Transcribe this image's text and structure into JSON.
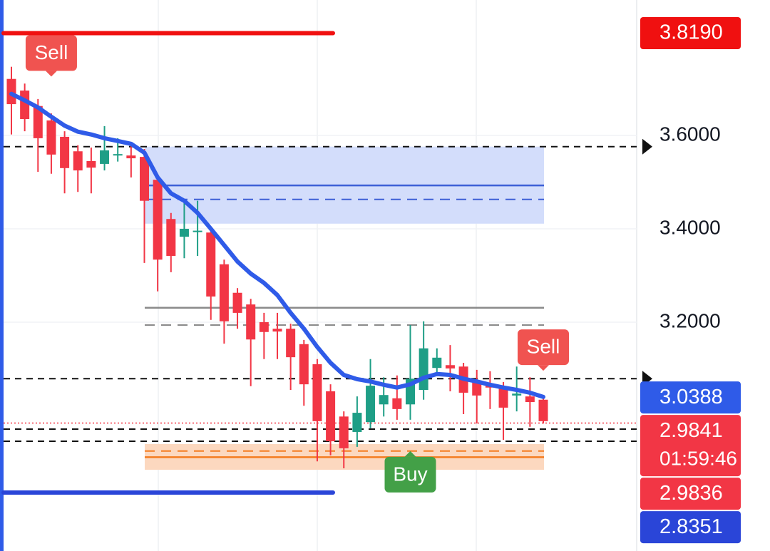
{
  "chart_data": {
    "type": "candlestick",
    "ylim": [
      2.71,
      3.89
    ],
    "yticks": [
      {
        "value": 3.6,
        "label": "3.6000"
      },
      {
        "value": 3.4,
        "label": "3.4000"
      },
      {
        "value": 3.2,
        "label": "3.2000"
      }
    ],
    "up_color": "#1e9e86",
    "down_color": "#f23645",
    "open": [
      3.721,
      3.696,
      3.663,
      3.632,
      3.597,
      3.566,
      3.545,
      3.539,
      3.559,
      3.557,
      3.554,
      3.505,
      3.421,
      3.383,
      3.394,
      3.392,
      3.324,
      3.263,
      3.238,
      3.2,
      3.186,
      3.186,
      3.153,
      3.11,
      3.052,
      2.998,
      2.965,
      2.986,
      3.024,
      3.037,
      3.024,
      3.055,
      3.102,
      3.108,
      3.105,
      3.075,
      3.067,
      3.058,
      3.043,
      3.041,
      3.034
    ],
    "high": [
      3.747,
      3.711,
      3.678,
      3.647,
      3.609,
      3.579,
      3.574,
      3.62,
      3.594,
      3.579,
      3.571,
      3.513,
      3.434,
      3.456,
      3.46,
      3.403,
      3.334,
      3.273,
      3.25,
      3.22,
      3.22,
      3.197,
      3.162,
      3.121,
      3.067,
      3.009,
      3.041,
      3.121,
      3.082,
      3.086,
      3.194,
      3.202,
      3.144,
      3.151,
      3.113,
      3.098,
      3.095,
      3.072,
      3.105,
      3.082,
      3.037
    ],
    "low": [
      3.602,
      3.609,
      3.522,
      3.518,
      3.476,
      3.479,
      3.476,
      3.525,
      3.544,
      3.51,
      3.327,
      3.266,
      3.307,
      3.337,
      3.342,
      3.205,
      3.154,
      3.186,
      3.063,
      3.121,
      3.121,
      3.055,
      3.021,
      2.902,
      2.915,
      2.887,
      2.933,
      2.973,
      2.998,
      2.991,
      2.991,
      3.034,
      3.086,
      3.052,
      3.003,
      2.983,
      3.014,
      2.948,
      3.009,
      2.976,
      2.983
    ],
    "close": [
      3.667,
      3.635,
      3.594,
      3.559,
      3.53,
      3.525,
      3.531,
      3.568,
      3.56,
      3.551,
      3.46,
      3.334,
      3.342,
      3.4,
      3.396,
      3.255,
      3.202,
      3.22,
      3.163,
      3.179,
      3.18,
      3.125,
      3.067,
      2.988,
      2.945,
      2.93,
      3.006,
      3.064,
      3.044,
      3.014,
      3.079,
      3.144,
      3.124,
      3.101,
      3.049,
      3.043,
      3.06,
      3.017,
      3.047,
      3.029,
      2.988
    ],
    "ma": {
      "color": "#2f5be8",
      "values": [
        3.689,
        3.675,
        3.66,
        3.64,
        3.621,
        3.608,
        3.602,
        3.594,
        3.588,
        3.582,
        3.563,
        3.51,
        3.476,
        3.46,
        3.434,
        3.4,
        3.365,
        3.33,
        3.304,
        3.284,
        3.258,
        3.22,
        3.186,
        3.147,
        3.113,
        3.087,
        3.078,
        3.073,
        3.066,
        3.06,
        3.067,
        3.081,
        3.089,
        3.087,
        3.079,
        3.073,
        3.066,
        3.06,
        3.055,
        3.049,
        3.04
      ]
    },
    "range_lines": [
      {
        "value": 3.819,
        "color": "#f01010"
      },
      {
        "value": 2.8351,
        "color": "#2a45d8"
      }
    ],
    "dashed_levels": [
      3.576,
      3.079,
      2.971,
      2.945
    ],
    "current_price": 2.9841,
    "zones": [
      {
        "top": 3.576,
        "bottom": 3.411,
        "line": 3.493,
        "dashed_line": 3.463,
        "fill": "#d3ddfb",
        "color": "#3d5fd6"
      },
      {
        "line": 3.231,
        "dashed_line": 3.194,
        "color": "#8a8a8a"
      },
      {
        "top": 2.939,
        "bottom": 2.884,
        "line": 2.911,
        "dashed_line": 2.924,
        "fill": "#fcd8bf",
        "color": "#f47c20"
      }
    ],
    "signals": [
      {
        "label": "Sell",
        "index": 3,
        "color": "#f05350",
        "price": 3.72
      },
      {
        "label": "Sell",
        "index": 40,
        "color": "#f05350",
        "price": 3.09
      },
      {
        "label": "Buy",
        "index": 30,
        "color": "#43a047",
        "price": 2.93
      }
    ],
    "price_labels": [
      {
        "value": 3.819,
        "label": "3.8190",
        "color": "#f01010"
      },
      {
        "value": 3.0388,
        "label": "3.0388",
        "color": "#2f5be8"
      },
      {
        "value": 2.9841,
        "label": "2.9841",
        "color": "#f23645",
        "countdown": "01:59:46"
      },
      {
        "value": 2.9836,
        "label": "2.9836",
        "color": "#f23645"
      },
      {
        "value": 2.8351,
        "label": "2.8351",
        "color": "#2a45d8"
      }
    ]
  }
}
